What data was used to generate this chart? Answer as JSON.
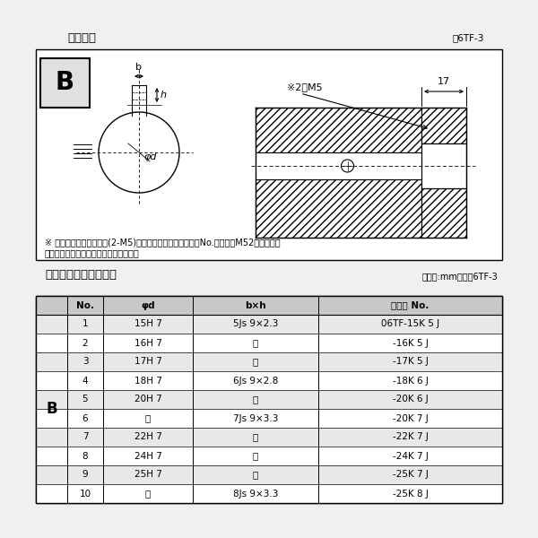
{
  "title_diagram": "軸穴形状",
  "fig_label": "図6TF-3",
  "note_line1": "※ セットボルト用タップ(2-M5)が必要な場合は右記コードNo.の末尾にM52を付ける。",
  "note_line2": "（セットボルトは付属されています。）",
  "table_title": "軸穴形状コード一覧表",
  "table_unit": "（単位:mm）　表6TF-3",
  "table_headers": [
    "No.",
    "φd",
    "b×h",
    "コード No."
  ],
  "table_rows": [
    [
      "1",
      "15H 7",
      "5Js 9×2.3",
      "06TF-15K 5 J"
    ],
    [
      "2",
      "16H 7",
      "〃",
      "-16K 5 J"
    ],
    [
      "3",
      "17H 7",
      "〃",
      "-17K 5 J"
    ],
    [
      "4",
      "18H 7",
      "6Js 9×2.8",
      "-18K 6 J"
    ],
    [
      "5",
      "20H 7",
      "〃",
      "-20K 6 J"
    ],
    [
      "6",
      "〃",
      "7Js 9×3.3",
      "-20K 7 J"
    ],
    [
      "7",
      "22H 7",
      "〃",
      "-22K 7 J"
    ],
    [
      "8",
      "24H 7",
      "〃",
      "-24K 7 J"
    ],
    [
      "9",
      "25H 7",
      "〃",
      "-25K 7 J"
    ],
    [
      "10",
      "〃",
      "8Js 9×3.3",
      "-25K 8 J"
    ]
  ],
  "bg_color": "#f0f0f0",
  "diagram_bg": "#ffffff",
  "table_header_bg": "#c8c8c8",
  "table_row_bg": "#ffffff",
  "table_alt_bg": "#e8e8e8",
  "font_size_title": 9.5,
  "font_size_table_header": 7.5,
  "font_size_table": 7.5,
  "font_size_note": 7.0,
  "dim_label_2m5": "※2－M5",
  "dim_label_17": "17"
}
